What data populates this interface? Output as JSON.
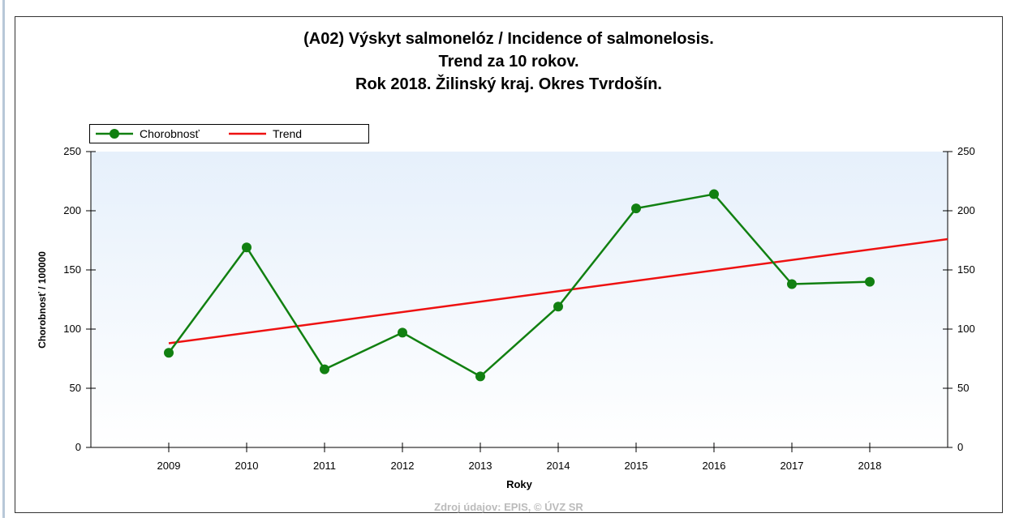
{
  "chart_data": {
    "type": "line",
    "title": [
      "(A02) Výskyt salmonelóz / Incidence of salmonelosis.",
      "Trend za 10 rokov.",
      "Rok 2018. Žilinský kraj. Okres Tvrdošín."
    ],
    "xlabel": "Roky",
    "ylabel": "Chorobnosť / 100000",
    "source": "Zdroj údajov: EPIS, © ÚVZ SR",
    "xlim": [
      2008,
      2019
    ],
    "xticks": [
      2009,
      2010,
      2011,
      2012,
      2013,
      2014,
      2015,
      2016,
      2017,
      2018
    ],
    "ylim": [
      0,
      250
    ],
    "yticks": [
      0,
      50,
      100,
      150,
      200,
      250
    ],
    "y2lim": [
      0,
      250
    ],
    "y2ticks": [
      0,
      50,
      100,
      150,
      200,
      250
    ],
    "series": [
      {
        "name": "Chorobnosť",
        "color": "#118011",
        "markers": true,
        "x": [
          2009,
          2010,
          2011,
          2012,
          2013,
          2014,
          2015,
          2016,
          2017,
          2018
        ],
        "values": [
          80,
          169,
          66,
          97,
          60,
          119,
          202,
          214,
          138,
          140
        ]
      },
      {
        "name": "Trend",
        "color": "#ee1111",
        "markers": false,
        "x": [
          2009,
          2019
        ],
        "values": [
          88,
          176
        ]
      }
    ]
  }
}
